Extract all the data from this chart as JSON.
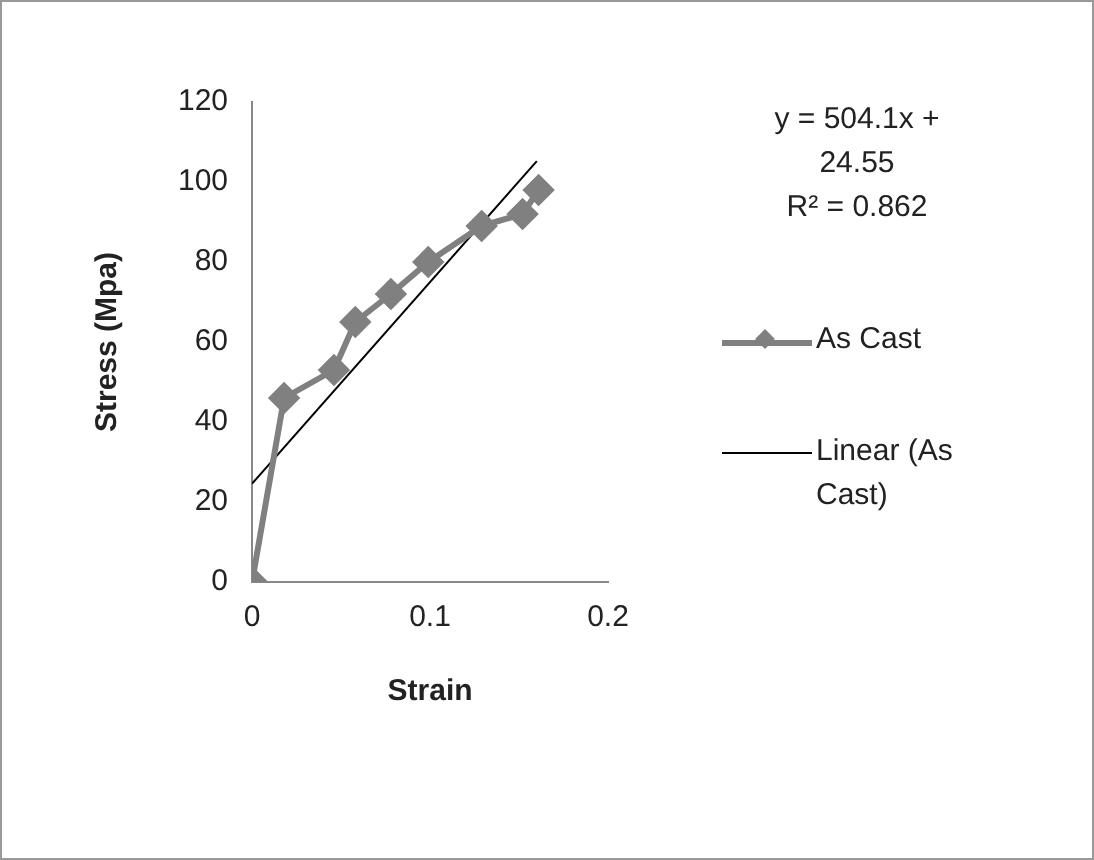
{
  "chart_data": {
    "type": "line",
    "xlabel": "Strain",
    "ylabel": "Stress (Mpa)",
    "xlim": [
      0,
      0.2
    ],
    "xticks": [
      0,
      0.1,
      0.2
    ],
    "ylim": [
      0,
      120
    ],
    "yticks": [
      0,
      20,
      40,
      60,
      80,
      100,
      120
    ],
    "grid": false,
    "legend": "right",
    "marker": "diamond",
    "annotations": [
      "y = 504.1x + 24.55",
      "R² = 0.862"
    ],
    "series": [
      {
        "name": "As Cast",
        "color": "#808080",
        "x": [
          0,
          0.018,
          0.046,
          0.058,
          0.078,
          0.099,
          0.129,
          0.152,
          0.161
        ],
        "values": [
          0,
          46,
          53,
          65,
          72,
          80,
          89,
          92,
          98
        ]
      },
      {
        "name": "Linear (As Cast)",
        "color": "#000000",
        "marker": "none",
        "x": [
          0,
          0.16
        ],
        "values": [
          24.6,
          105.2
        ]
      }
    ]
  }
}
